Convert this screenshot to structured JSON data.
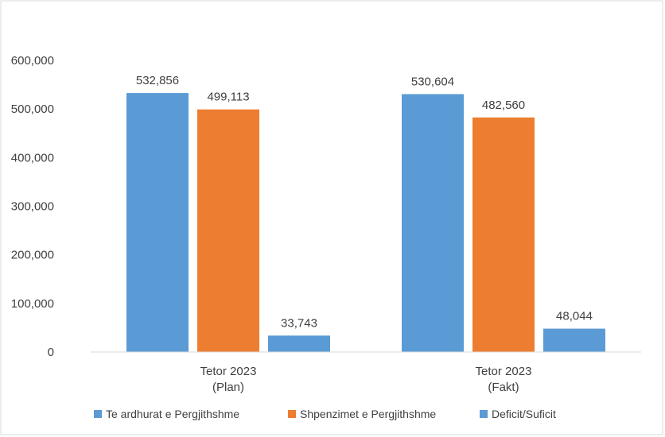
{
  "chart_data": {
    "type": "bar",
    "categories": [
      [
        "Tetor 2023",
        "(Plan)"
      ],
      [
        "Tetor 2023",
        "(Fakt)"
      ]
    ],
    "series": [
      {
        "name": "Te ardhurat e Pergjithshme",
        "color": "#5B9BD5",
        "values": [
          532856,
          530604
        ],
        "labels": [
          "532,856",
          "530,604"
        ]
      },
      {
        "name": "Shpenzimet e Pergjithshme",
        "color": "#ED7D31",
        "values": [
          499113,
          482560
        ],
        "labels": [
          "499,113",
          "482,560"
        ]
      },
      {
        "name": "Deficit/Suficit",
        "color": "#5B9BD5",
        "values": [
          33743,
          48044
        ],
        "labels": [
          "33,743",
          "48,044"
        ]
      }
    ],
    "ylim": [
      0,
      600000
    ],
    "yticks": [
      0,
      100000,
      200000,
      300000,
      400000,
      500000,
      600000
    ],
    "ytick_labels": [
      "0",
      "100,000",
      "200,000",
      "300,000",
      "400,000",
      "500,000",
      "600,000"
    ],
    "grid": false,
    "legend": "bottom"
  }
}
